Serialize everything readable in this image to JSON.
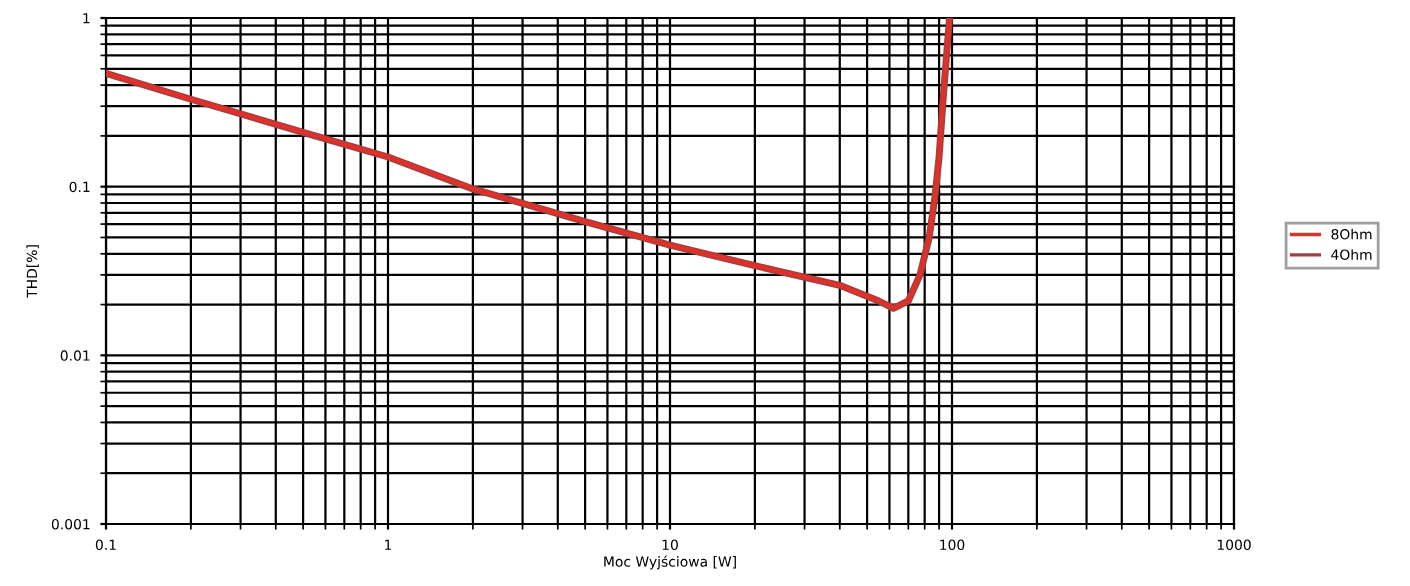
{
  "chart_data": {
    "type": "line",
    "xlabel": "Moc Wyjściowa [W]",
    "ylabel": "THD[%]",
    "log": "xy",
    "grid": true,
    "legend": "right",
    "xlim": [
      0.1,
      1000
    ],
    "ylim": [
      0.001,
      1
    ],
    "xticks": [
      0.1,
      1,
      10,
      100,
      1000
    ],
    "yticks": [
      0.001,
      0.01,
      0.1,
      1
    ],
    "series": [
      {
        "name": "8Ohm",
        "color": "#e0302a",
        "x": [
          0.1,
          0.2,
          0.5,
          1,
          2,
          5,
          10,
          20,
          40,
          55,
          62,
          70,
          77,
          83,
          87,
          90,
          93,
          96,
          98
        ],
        "values": [
          0.47,
          0.33,
          0.21,
          0.15,
          0.097,
          0.062,
          0.045,
          0.034,
          0.026,
          0.021,
          0.019,
          0.021,
          0.03,
          0.05,
          0.087,
          0.15,
          0.33,
          0.65,
          1
        ]
      },
      {
        "name": "4Ohm",
        "color": "#a04040",
        "x": [
          0.1,
          0.2,
          0.5,
          1,
          2,
          5,
          10,
          20,
          40,
          55,
          62,
          70,
          77,
          83,
          87,
          90,
          93,
          96,
          98
        ],
        "values": [
          0.47,
          0.33,
          0.21,
          0.15,
          0.097,
          0.062,
          0.045,
          0.034,
          0.026,
          0.021,
          0.019,
          0.021,
          0.03,
          0.05,
          0.087,
          0.15,
          0.33,
          0.65,
          1
        ]
      }
    ]
  }
}
